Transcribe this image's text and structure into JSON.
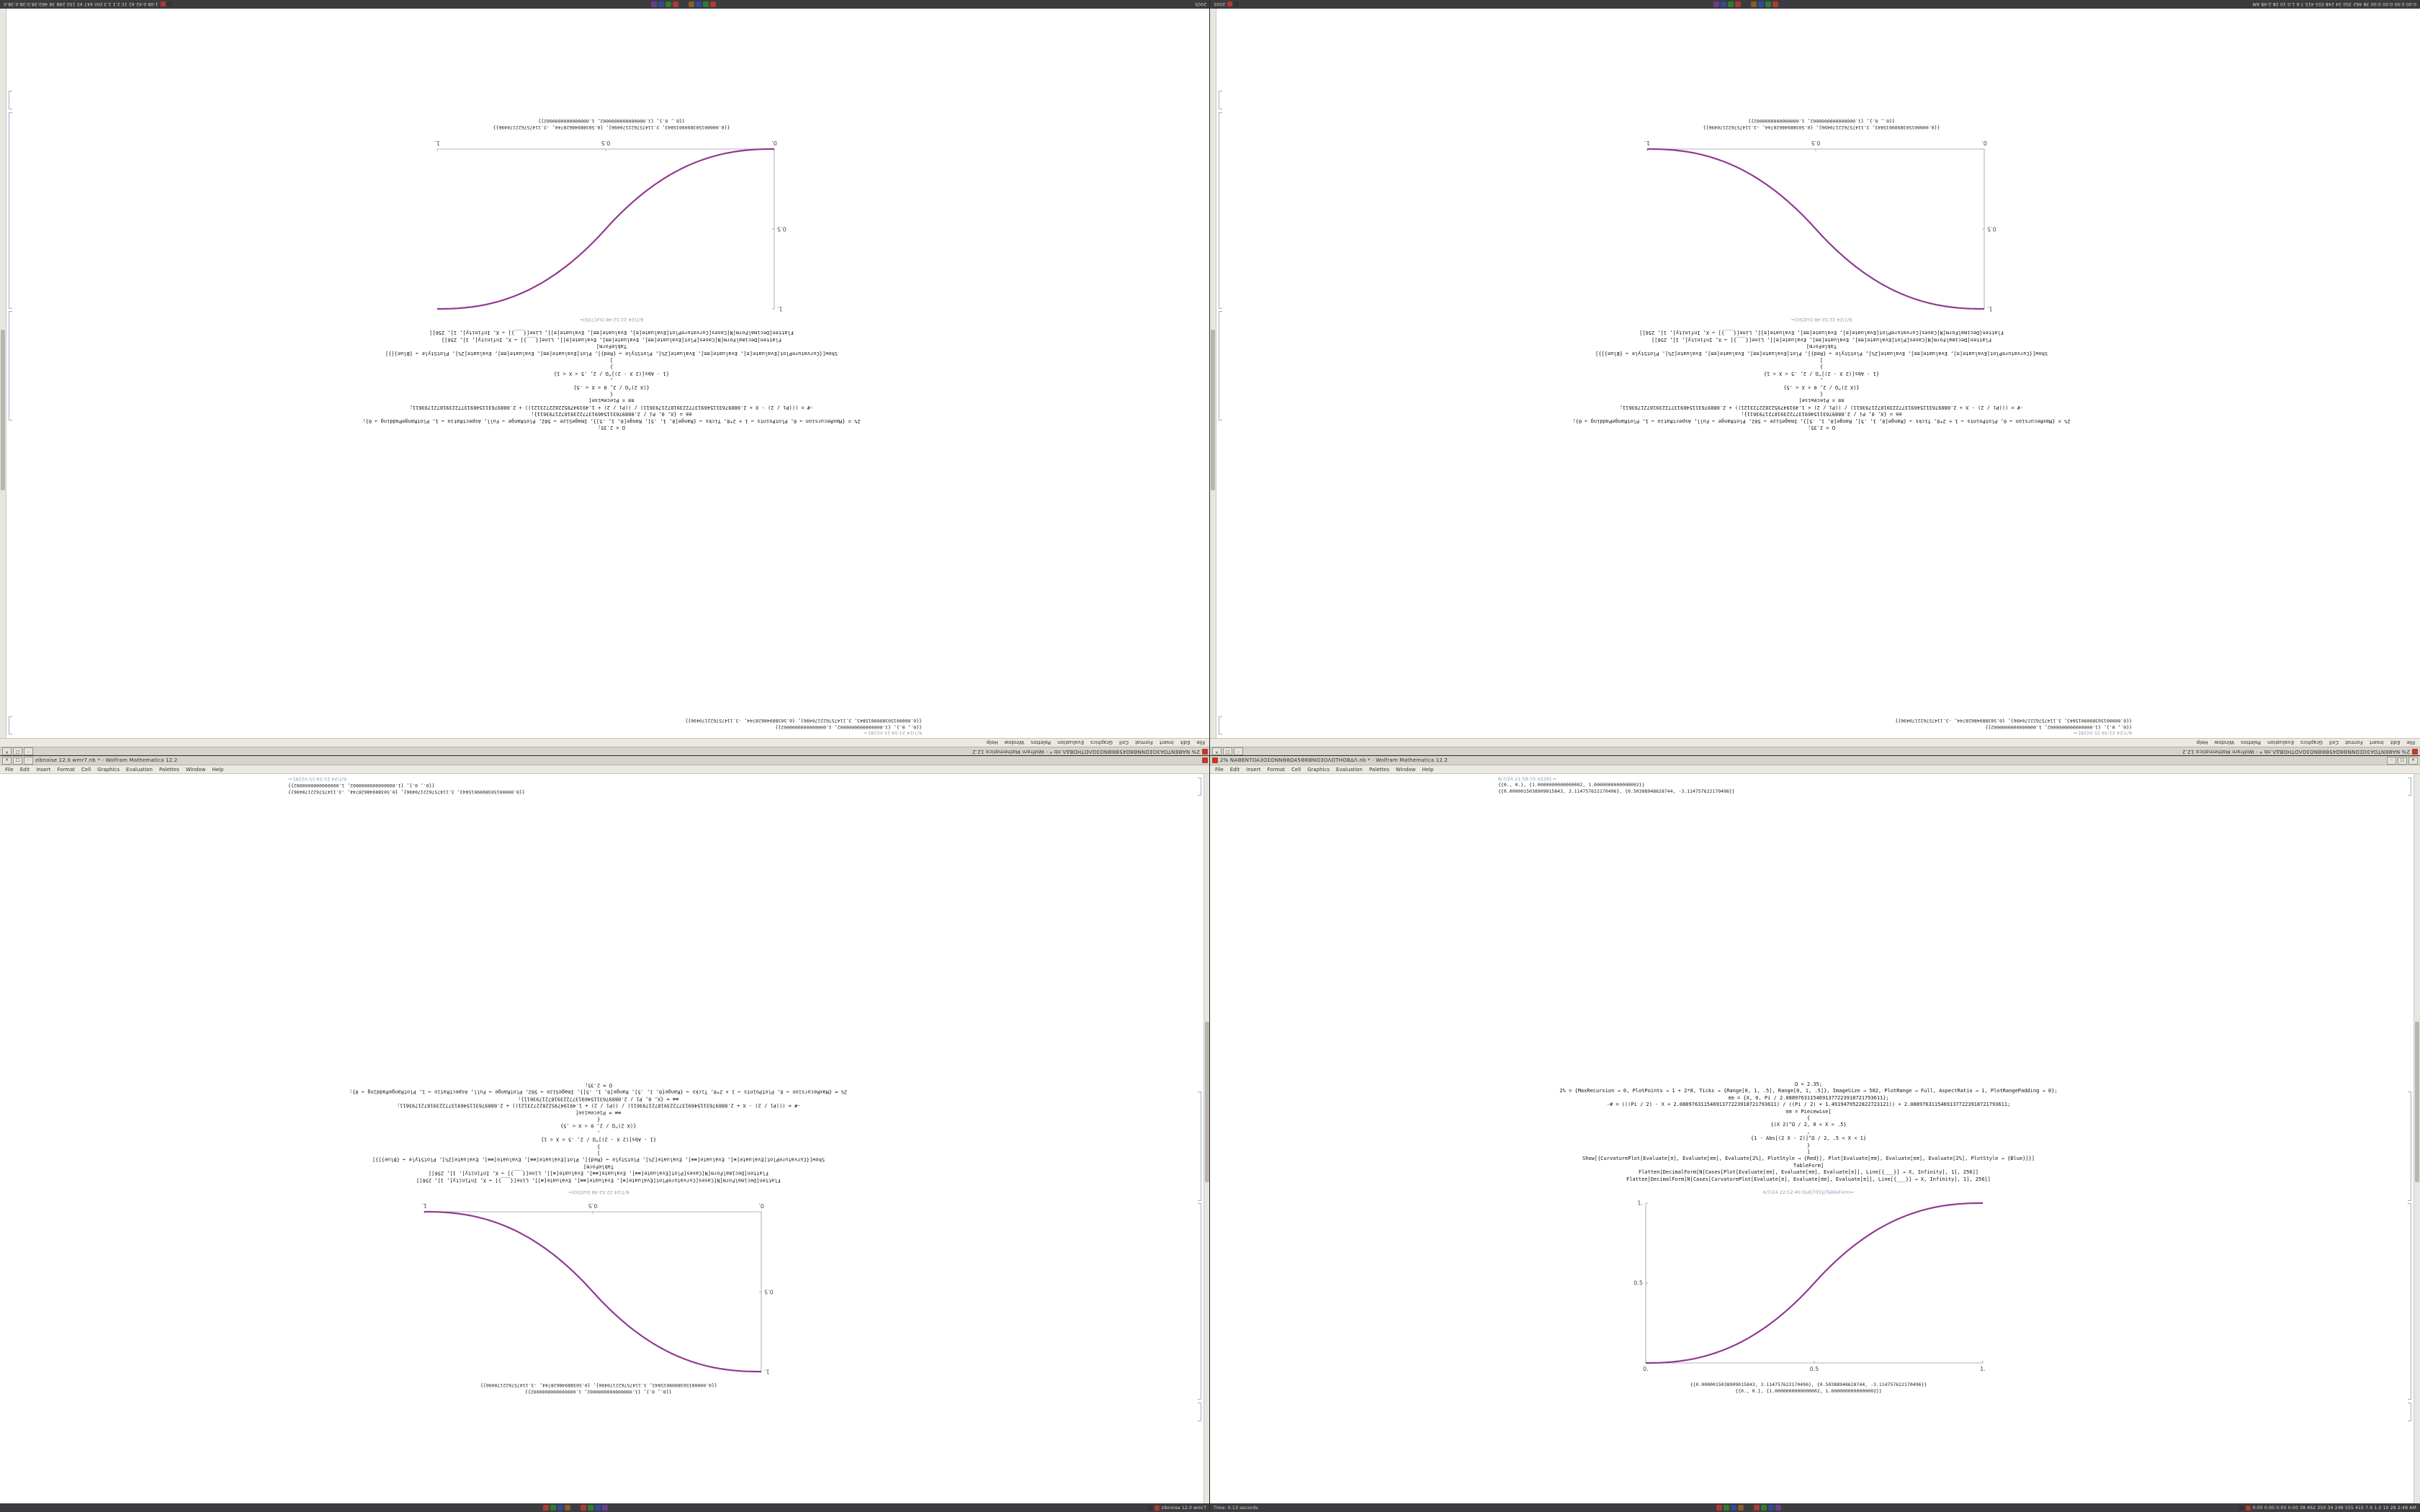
{
  "shared": {
    "app_name": "Wolfram Mathematica 12.2",
    "menu_items": [
      "File",
      "Edit",
      "Insert",
      "Format",
      "Cell",
      "Graphics",
      "Evaluation",
      "Palettes",
      "Window",
      "Help"
    ],
    "window_controls": {
      "minimize": "–",
      "maximize": "□",
      "close": "✕"
    },
    "code_lines": [
      "Ω = 2.35;",
      "2% = {MaxRecursion → 0, PlotPoints → 1 + 2*8, Ticks → {Range[0, 1, .5], Range[0, 1, .5]}, ImageSize → 502, PlotRange → Full, AspectRatio → 1, PlotRangePadding → 0};",
      "≡≡ = {X, 0, Pi / 2.08897631154691377223918721793611};",
      "-# = (((Pi / 2) - X + 2.08897631154691377223918721793611) / ((Pi / 2) + 1.4919479522822723121)) + 2.08897631154691377223918721793611;",
      "≡≡ = Piecewise[",
      "{",
      "{(X 2)^Ω / 2, 0 < X < .5}",
      ",",
      "{1 - Abs[(2 X - 2)]^Ω / 2, .5 < X < 1}",
      "}",
      "]",
      "Show[{CurvaturePlot[Evaluate[≡], Evaluate[≡≡], Evaluate[2%], PlotStyle → {Red}], Plot[Evaluate[≡≡], Evaluate[≡≡], Evaluate[2%], PlotStyle → {Blue}]}]",
      "TableForm]",
      "Flatten[DecimalForm[N[Cases[Plot[Evaluate[≡≡], Evaluate[≡≡], Evaluate[≡]], Line[{___}] → X, Infinity], 1], 256]]",
      "Flatten[DecimalForm[N[Cases[CurvaturePlot[Evaluate[≡], Evaluate[≡≡], Evaluate[≡]], Line[{___}] → X, Infinity], 1], 256]]"
    ],
    "taskbar_icon_colors": [
      "#b03a2e",
      "#2e7d32",
      "#2e4b9b",
      "#8a5a2c",
      "#b03a2e",
      "#2e7d32",
      "#2e4b9b",
      "#6a3d8f"
    ],
    "tray_icon_colors": [
      "#333338",
      "#b03a2e"
    ],
    "colors": {
      "curve_red": "#cc2255",
      "curve_blue": "#4433bb",
      "axis": "#9a9a9a",
      "timestamp": "#8a9bb2",
      "bracket": "#9bb0c8",
      "titlebar_bg": "#d6d3cc",
      "menubar_bg": "#ece9e3",
      "taskbar_bg": "#3c3c3e",
      "notebook_bg": "#ffffff"
    }
  },
  "screens": [
    {
      "id": "top-left",
      "window": {
        "title": "2% NAΘENTOA3OΣONNΘ8Ω45Θ8ΘNO3OΛOTHOBΔΛ.nb * - Wolfram Mathematica 12.2"
      },
      "notebook": {
        "top_label": "6/7/24 21:59:15 In[28]:=",
        "top_outputs": [
          "{{0., 0.}, {1.0000000000000002, 1.0000000000000002}}",
          "{{0.0000015038909015843, 3.114757622170496}, {0.50388948628744, -3.114757622170496}}"
        ],
        "out_label": "6/7/24 22:52:48 Out[705]=",
        "bottom_outputs": [
          "{{0.0000015038909015843, 3.114757622170496}, {0.50388948628744, -3.114757622170496}}",
          "{{0., 0.}, {1.0000000000000002, 1.0000000000000002}}"
        ],
        "plot": {
          "direction": "up",
          "exponent": 2.35,
          "x_ticks": [
            "0.",
            "0.5",
            "1."
          ],
          "y_ticks": [
            "0.5",
            "1."
          ]
        }
      },
      "taskbar": {
        "left_text": "2005",
        "right_text": "1:08 0:42 42 15 2.1 2.3 DVI 447 45 150 298 38 460:38.0:38.0:38.0"
      }
    },
    {
      "id": "top-right",
      "window": {
        "title": "2% NAΘENTOA3OΣONNΘ8Ω45Θ8ΘNO3OΛOTHOBΔΛ.nb * - Wolfram Mathematica 12.2"
      },
      "notebook": {
        "top_label": "6/7/24 21:59:15 In[28]:=",
        "top_outputs": [
          "{{0., 0.}, {1.0000000000000002, 1.0000000000000002}}",
          "{{0.0000015038909015843, 3.114757622170496}, {0.50388948628744, -3.114757622170496}}"
        ],
        "out_label": "6/7/24 22:52:48 Out[50]=",
        "bottom_outputs": [
          "{{0.0000015038909015843, 3.114757622170496}, {0.50388948628744, -3.114757622170496}}",
          "{{0., 0.}, {1.0000000000000002, 1.0000000000000002}}"
        ],
        "plot": {
          "direction": "down",
          "exponent": 2.35,
          "x_ticks": [
            "0.",
            "0.5",
            "1."
          ],
          "y_ticks": [
            "0.5",
            "1."
          ]
        }
      },
      "taskbar": {
        "left_text": "0:00 0:00 0:00 0:00 38 462 350 34 248 555 415 7.6 1.0 10 28 2:48 AM",
        "right_text": "2005"
      }
    },
    {
      "id": "bottom-left",
      "window": {
        "title": "zibnoise 12.0 wmr7.nb * - Wolfram Mathematica 12.2"
      },
      "notebook": {
        "top_label": "6/7/24 21:59:15 In[28]:=",
        "top_outputs": [
          "{{0., 0.}, {1.0000000000000002, 1.0000000000000002}}",
          "{{0.0000015038909015843, 3.114757622170496}, {0.50388948628744, -3.114757622170496}}"
        ],
        "out_label": "6/7/24 22:52:48 Out[50]=",
        "bottom_outputs": [
          "{{0.0000015038909015843, 3.114757622170496}, {0.50388948628744, -3.114757622170496}}",
          "{{0., 0.}, {1.0000000000000002, 1.0000000000000002}}"
        ],
        "plot": {
          "direction": "down",
          "exponent": 2.35,
          "x_ticks": [
            "0.",
            "0.5",
            "1."
          ],
          "y_ticks": [
            "0.5",
            "1."
          ]
        }
      },
      "taskbar": {
        "left_text": "",
        "right_text": "zibnoise 12.0 wmr7"
      }
    },
    {
      "id": "bottom-right",
      "window": {
        "title": "2% NAΘENTOA3OΣONNΘ8Ω45Θ8ΘNO3OΛOTHOBΔΛ.nb * - Wolfram Mathematica 12.2"
      },
      "notebook": {
        "top_label": "6/7/24 21:59:15 In[28]:=",
        "top_outputs": [
          "{{0., 0.}, {1.0000000000000002, 1.0000000000000002}}",
          "{{0.0000015038909015843, 3.114757622170496}, {0.50388948628744, -3.114757622170496}}"
        ],
        "out_label": "6/7/24 22:52:40 Out[705]//TableForm=",
        "bottom_outputs": [
          "{{0.0000015038909015843, 3.114757622170496}, {0.50388948628744, -3.114757622170496}}",
          "{{0., 0.}, {1.0000000000000002, 1.0000000000000002}}"
        ],
        "plot": {
          "direction": "up",
          "exponent": 2.35,
          "x_ticks": [
            "0.",
            "0.5",
            "1."
          ],
          "y_ticks": [
            "0.5",
            "1."
          ]
        }
      },
      "taskbar": {
        "left_text": "Time: 0.13 seconds",
        "right_text": "0:00 0:00 0:00 0:00 38 462 350 34 248 555 415 7.6 1.0 10 28 2:48 AM"
      }
    }
  ],
  "chart_data": [
    {
      "type": "line",
      "title": "Out[705]= increasing piecewise power curve (screens: top-left, bottom-right)",
      "x": [
        0,
        0.1,
        0.2,
        0.3,
        0.4,
        0.5,
        0.6,
        0.7,
        0.8,
        0.9,
        1.0
      ],
      "series": [
        {
          "name": "Plot (Blue)",
          "values": [
            0,
            0.0114,
            0.0581,
            0.1505,
            0.296,
            0.5,
            0.704,
            0.8495,
            0.9419,
            0.9886,
            1.0
          ]
        },
        {
          "name": "CurvaturePlot (Red)",
          "values": [
            0,
            0.0114,
            0.0581,
            0.1505,
            0.296,
            0.5,
            0.704,
            0.8495,
            0.9419,
            0.9886,
            1.0
          ]
        }
      ],
      "xlim": [
        0,
        1
      ],
      "ylim": [
        0,
        1
      ],
      "x_tick_labels": [
        "0.",
        "0.5",
        "1."
      ],
      "y_tick_labels": [
        "0.5",
        "1."
      ],
      "grid": false,
      "legend": "none"
    },
    {
      "type": "line",
      "title": "Out[50]= decreasing piecewise power curve (screens: top-right, bottom-left)",
      "x": [
        0,
        0.1,
        0.2,
        0.3,
        0.4,
        0.5,
        0.6,
        0.7,
        0.8,
        0.9,
        1.0
      ],
      "series": [
        {
          "name": "Plot (Blue)",
          "values": [
            1,
            0.9886,
            0.9419,
            0.8495,
            0.704,
            0.5,
            0.296,
            0.1505,
            0.0581,
            0.0114,
            0
          ]
        },
        {
          "name": "CurvaturePlot (Red)",
          "values": [
            1,
            0.9886,
            0.9419,
            0.8495,
            0.704,
            0.5,
            0.296,
            0.1505,
            0.0581,
            0.0114,
            0
          ]
        }
      ],
      "xlim": [
        0,
        1
      ],
      "ylim": [
        0,
        1
      ],
      "x_tick_labels": [
        "0.",
        "0.5",
        "1."
      ],
      "y_tick_labels": [
        "0.5",
        "1."
      ],
      "grid": false,
      "legend": "none"
    }
  ]
}
